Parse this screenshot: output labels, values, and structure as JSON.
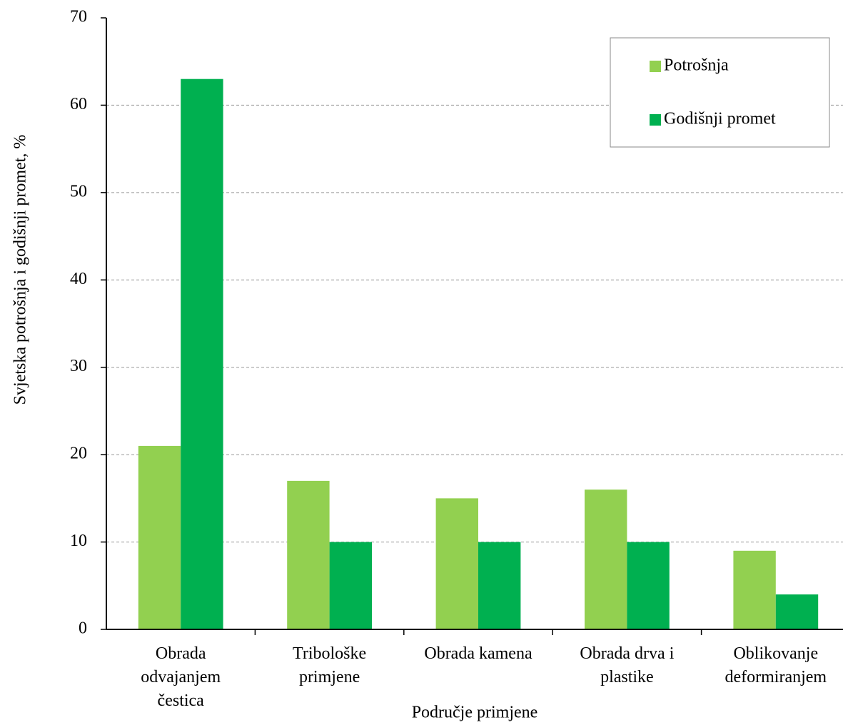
{
  "chart_data": {
    "type": "bar",
    "x_label": "Područje primjene",
    "y_label": "Svjetska potrošnja i godišnji promet, %",
    "categories": [
      "Obrada odvajanjem čestica",
      "Tribološke primjene",
      "Obrada kamena",
      "Obrada drva i plastike",
      "Oblikovanje deformiranjem"
    ],
    "series": [
      {
        "name": "Potrošnja",
        "color": "#92d050",
        "values": [
          21,
          17,
          15,
          16,
          9
        ]
      },
      {
        "name": "Godišnji promet",
        "color": "#00b050",
        "values": [
          63,
          10,
          10,
          10,
          4
        ]
      }
    ],
    "ylim": [
      0,
      70
    ],
    "yticks": [
      0,
      10,
      20,
      30,
      40,
      50,
      60,
      70
    ],
    "grid": true,
    "legend": "top-right"
  }
}
